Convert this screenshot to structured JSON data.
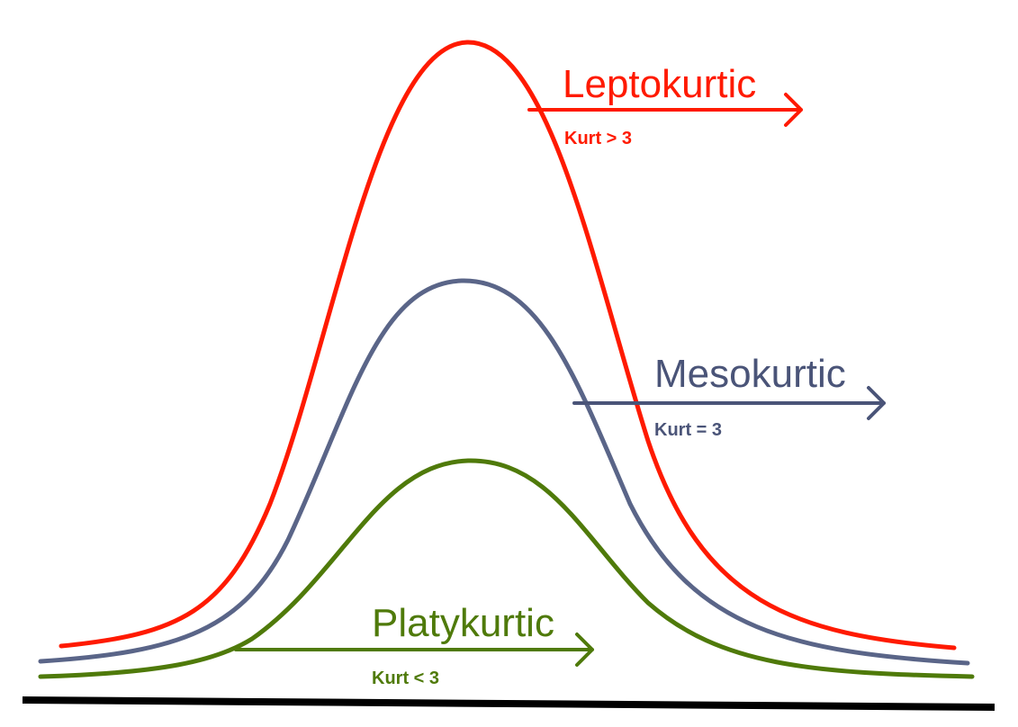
{
  "colors": {
    "leptokurtic": "#ff1a00",
    "mesokurtic": "#4a5478",
    "mesokurtic_curve": "#5a6588",
    "platykurtic": "#4f7a0a",
    "baseline": "#000000"
  },
  "labels": {
    "leptokurtic": {
      "name": "Leptokurtic",
      "condition": "Kurt > 3"
    },
    "mesokurtic": {
      "name": "Mesokurtic",
      "condition": "Kurt = 3"
    },
    "platykurtic": {
      "name": "Platykurtic",
      "condition": "Kurt < 3"
    }
  }
}
